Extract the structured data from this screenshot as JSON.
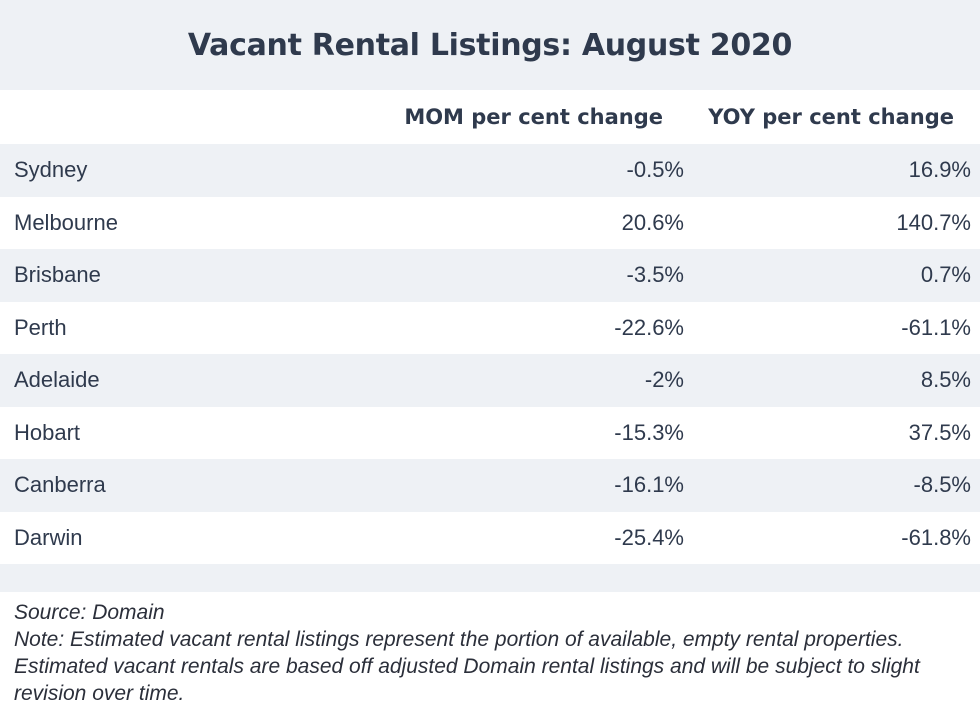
{
  "title": "Vacant Rental Listings: August 2020",
  "chart_data": {
    "type": "table",
    "title": "Vacant Rental Listings: August 2020",
    "columns": [
      "",
      "MOM per cent change",
      "YOY per cent change"
    ],
    "rows": [
      {
        "city": "Sydney",
        "mom": "-0.5%",
        "yoy": "16.9%"
      },
      {
        "city": "Melbourne",
        "mom": "20.6%",
        "yoy": "140.7%"
      },
      {
        "city": "Brisbane",
        "mom": "-3.5%",
        "yoy": "0.7%"
      },
      {
        "city": "Perth",
        "mom": "-22.6%",
        "yoy": "-61.1%"
      },
      {
        "city": "Adelaide",
        "mom": "-2%",
        "yoy": "8.5%"
      },
      {
        "city": "Hobart",
        "mom": "-15.3%",
        "yoy": "37.5%"
      },
      {
        "city": "Canberra",
        "mom": "-16.1%",
        "yoy": "-8.5%"
      },
      {
        "city": "Darwin",
        "mom": "-25.4%",
        "yoy": "-61.8%"
      }
    ]
  },
  "header": {
    "mom_label": "MOM per cent change",
    "yoy_label": "YOY per cent change"
  },
  "footer": {
    "source": "Source: Domain",
    "note": "Note: Estimated vacant rental listings represent the portion of available, empty rental properties. Estimated vacant rentals are based off adjusted Domain rental listings and will be subject to slight revision over time."
  },
  "colors": {
    "band": "#eef1f5",
    "text": "#2f3a4d"
  }
}
